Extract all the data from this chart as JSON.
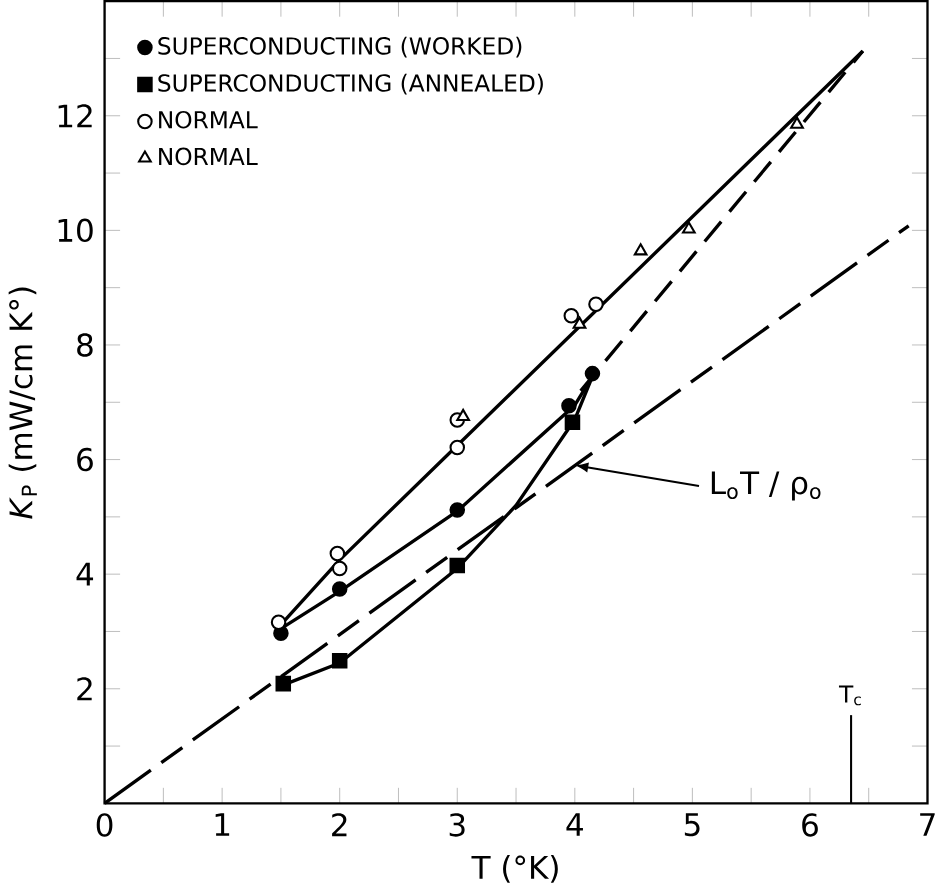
{
  "chart_data": {
    "type": "scatter",
    "xlabel": "T (°K)",
    "ylabel": "*K*$_{P}$ (mW/cm K°)",
    "xlim": [
      0,
      7
    ],
    "ylim": [
      0,
      14
    ],
    "xticks": [
      0,
      {
        "value": 0.5,
        "label": null
      },
      1,
      {
        "value": 1.5,
        "label": null
      },
      2,
      {
        "value": 2.5,
        "label": null
      },
      3,
      {
        "value": 3.5,
        "label": null
      },
      4,
      {
        "value": 4.5,
        "label": null
      },
      5,
      {
        "value": 5.5,
        "label": null
      },
      6,
      {
        "value": 6.5,
        "label": null
      },
      7
    ],
    "yticks": [
      {
        "value": 1,
        "label": null
      },
      2,
      {
        "value": 3,
        "label": null
      },
      4,
      {
        "value": 5,
        "label": null
      },
      6,
      {
        "value": 7,
        "label": null
      },
      8,
      {
        "value": 9,
        "label": null
      },
      10,
      {
        "value": 11,
        "label": null
      },
      12,
      {
        "value": 13,
        "label": null
      }
    ],
    "legend": "top left",
    "grid": false,
    "series": [
      {
        "name": "SUPERCONDUCTING (WORKED)",
        "marker": "circle",
        "color": "#000000",
        "x": [
          1.5,
          2.0,
          3.0,
          3.95,
          4.15
        ],
        "values": [
          2.97,
          3.74,
          5.12,
          6.94,
          7.5
        ]
      },
      {
        "name": "SUPERCONDUCTING (ANNEALED)",
        "marker": "square",
        "color": "#000000",
        "x": [
          1.52,
          2.0,
          3.0,
          3.98
        ],
        "values": [
          2.09,
          2.49,
          4.15,
          6.65
        ]
      },
      {
        "name": "NORMAL",
        "marker": "circle",
        "color": "#ffffff",
        "x": [
          1.48,
          1.98,
          2.0,
          3.0,
          3.0,
          3.97,
          4.18
        ],
        "values": [
          3.16,
          4.36,
          4.1,
          6.69,
          6.21,
          8.51,
          8.71
        ]
      },
      {
        "name": "NORMAL",
        "marker": "triangle",
        "color": "#ffffff",
        "x": [
          3.05,
          4.04,
          4.56,
          4.97,
          5.89
        ],
        "values": [
          6.75,
          8.36,
          9.64,
          10.02,
          11.85
        ]
      },
      {
        "type": "line",
        "line_style": "solid",
        "color": "#000000",
        "x": [
          1.5,
          2.0,
          6.45
        ],
        "values": [
          3.12,
          4.25,
          13.13
        ]
      },
      {
        "type": "line",
        "line_style": "solid",
        "color": "#000000",
        "x": [
          1.5,
          2.0,
          3.0,
          4.0,
          4.15
        ],
        "values": [
          3.05,
          3.7,
          5.1,
          6.95,
          7.45
        ]
      },
      {
        "type": "line",
        "line_style": "solid",
        "color": "#000000",
        "x": [
          1.5,
          2.0,
          3.0,
          3.5,
          4.0,
          4.15
        ],
        "values": [
          2.05,
          2.45,
          4.1,
          5.2,
          6.7,
          7.45
        ]
      },
      {
        "type": "line",
        "line_style": "dashed",
        "color": "#000000",
        "x": [
          4.05,
          6.45
        ],
        "values": [
          7.2,
          13.13
        ]
      },
      {
        "type": "line",
        "line_style": "dashdotted",
        "color": "#000000",
        "x": [
          0,
          6.84
        ],
        "values": [
          0,
          10.08
        ]
      }
    ],
    "ref_lines": [
      {
        "axis": "x",
        "value": 6.35,
        "label": "T$_{c}$"
      }
    ],
    "annotations": [
      {
        "text": "L$_{o}$T / ρ$_{o}$",
        "x": 4.0,
        "y": 5.9
      }
    ]
  }
}
